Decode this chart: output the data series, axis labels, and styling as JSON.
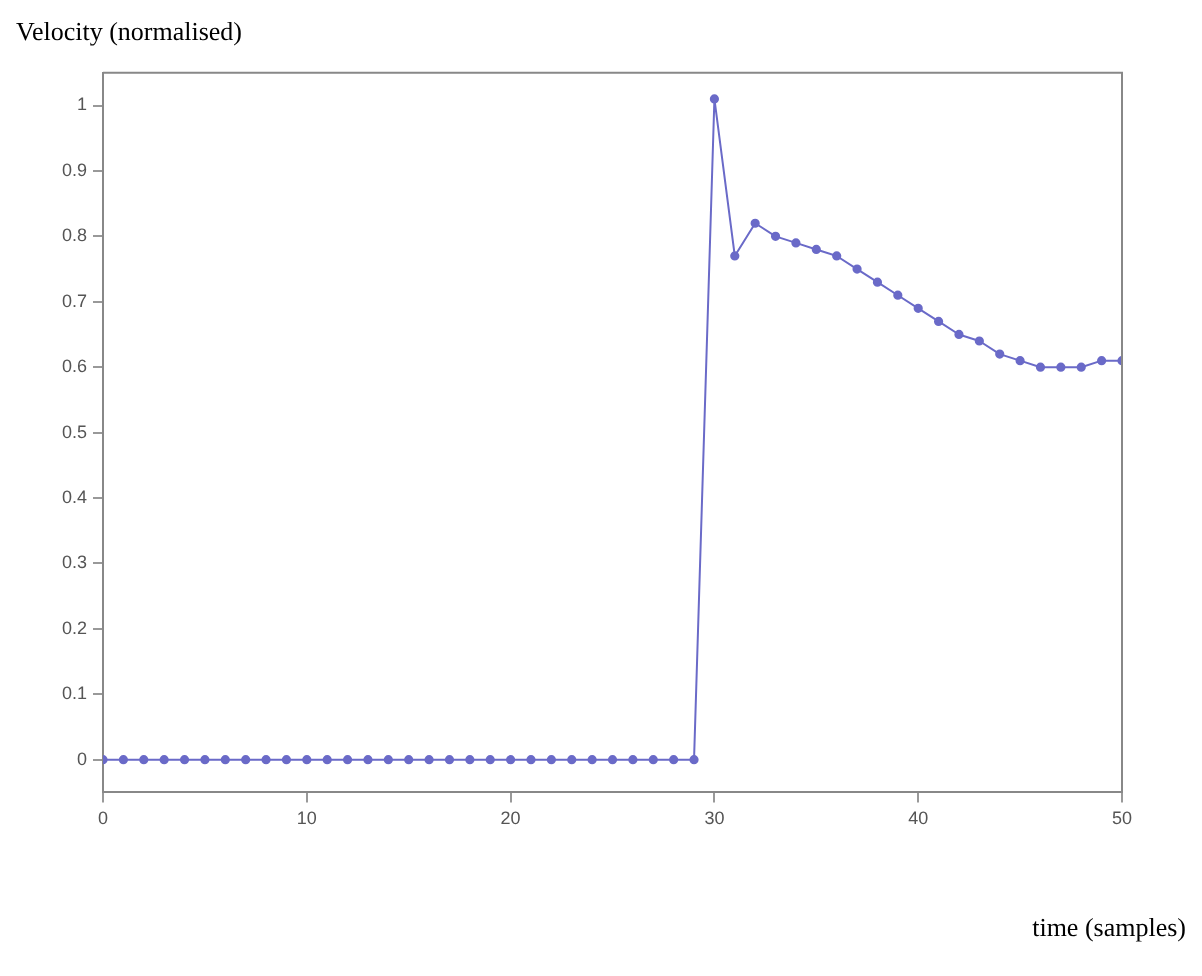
{
  "chart_data": {
    "type": "line",
    "ylabel": "Velocity (normalised)",
    "xlabel": "time (samples)",
    "x": [
      0,
      1,
      2,
      3,
      4,
      5,
      6,
      7,
      8,
      9,
      10,
      11,
      12,
      13,
      14,
      15,
      16,
      17,
      18,
      19,
      20,
      21,
      22,
      23,
      24,
      25,
      26,
      27,
      28,
      29,
      30,
      31,
      32,
      33,
      34,
      35,
      36,
      37,
      38,
      39,
      40,
      41,
      42,
      43,
      44,
      45,
      46,
      47,
      48,
      49,
      50
    ],
    "series": [
      {
        "color": "#6a6ac8",
        "values": [
          0,
          0,
          0,
          0,
          0,
          0,
          0,
          0,
          0,
          0,
          0,
          0,
          0,
          0,
          0,
          0,
          0,
          0,
          0,
          0,
          0,
          0,
          0,
          0,
          0,
          0,
          0,
          0,
          0,
          0,
          1.01,
          0.77,
          0.82,
          0.8,
          0.79,
          0.78,
          0.77,
          0.75,
          0.73,
          0.71,
          0.69,
          0.67,
          0.65,
          0.64,
          0.62,
          0.61,
          0.6,
          0.6,
          0.6,
          0.61,
          0.61
        ]
      }
    ],
    "xlim": [
      0,
      50
    ],
    "xticks": [
      0,
      10,
      20,
      30,
      40,
      50
    ],
    "ylim": [
      -0.05,
      1.05
    ],
    "yticks": [
      0,
      0.1,
      0.2,
      0.3,
      0.4,
      0.5,
      0.6,
      0.7,
      0.8,
      0.9,
      1
    ],
    "grid": false,
    "legend": false,
    "marker": "circle",
    "line_style": "solid"
  }
}
